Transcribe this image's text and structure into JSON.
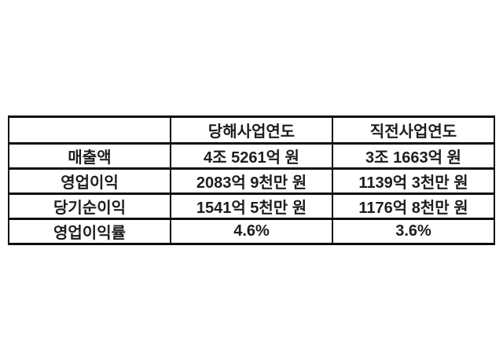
{
  "chart_data": {
    "type": "table",
    "title": "",
    "columns": [
      "",
      "당해사업연도",
      "직전사업연도"
    ],
    "rows": [
      [
        "매출액",
        "4조 5261억 원",
        "3조 1663억 원"
      ],
      [
        "영업이익",
        "2083억 9천만 원",
        "1139억 3천만 원"
      ],
      [
        "당기순이익",
        "1541억 5천만 원",
        "1176억 8천만 원"
      ],
      [
        "영업이익률",
        "4.6%",
        "3.6%"
      ]
    ]
  },
  "colors": {
    "background": "#ffffff",
    "border": "#0d0d0d",
    "text": "#1d1d1d"
  }
}
